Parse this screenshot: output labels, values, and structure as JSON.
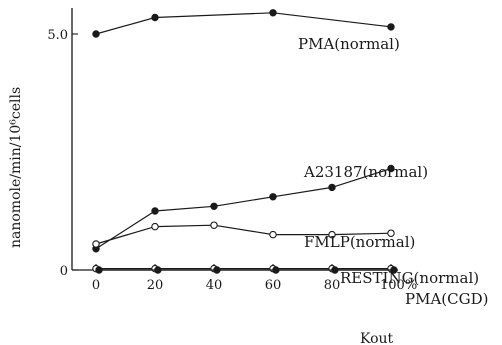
{
  "chart_data": {
    "type": "line",
    "xlabel": "Kout",
    "ylabel": "nanomole/min/10⁶cells",
    "x_ticks": [
      {
        "value": 0,
        "label": "0"
      },
      {
        "value": 20,
        "label": "20"
      },
      {
        "value": 40,
        "label": "40"
      },
      {
        "value": 60,
        "label": "60"
      },
      {
        "value": 80,
        "label": "80"
      },
      {
        "value": 100,
        "label": "100%"
      }
    ],
    "y_ticks": [
      {
        "value": 0,
        "label": "0"
      },
      {
        "value": 5,
        "label": "5.0"
      }
    ],
    "xlim": [
      0,
      100
    ],
    "ylim": [
      0,
      5.6
    ],
    "grid": false,
    "legend": "none",
    "series": [
      {
        "name": "PMA(normal)",
        "marker": "filled",
        "x": [
          0,
          20,
          60,
          100
        ],
        "y": [
          5.0,
          5.35,
          5.45,
          5.15
        ]
      },
      {
        "name": "A23187(normal)",
        "marker": "filled",
        "x": [
          0,
          20,
          40,
          60,
          80,
          100
        ],
        "y": [
          0.45,
          1.25,
          1.35,
          1.55,
          1.75,
          2.15
        ]
      },
      {
        "name": "FMLP(normal)",
        "marker": "open",
        "x": [
          0,
          20,
          40,
          60,
          80,
          100
        ],
        "y": [
          0.55,
          0.92,
          0.95,
          0.75,
          0.75,
          0.78
        ]
      },
      {
        "name": "RESTING(normal)",
        "marker": "open",
        "x": [
          0,
          20,
          40,
          60,
          80,
          100
        ],
        "y": [
          0.03,
          0.03,
          0.03,
          0.03,
          0.03,
          0.03
        ]
      },
      {
        "name": "PMA(CGD)",
        "marker": "filled",
        "x": [
          1,
          21,
          41,
          61,
          81,
          101
        ],
        "y": [
          0.0,
          0.0,
          0.0,
          0.0,
          0.0,
          0.0
        ]
      }
    ]
  }
}
